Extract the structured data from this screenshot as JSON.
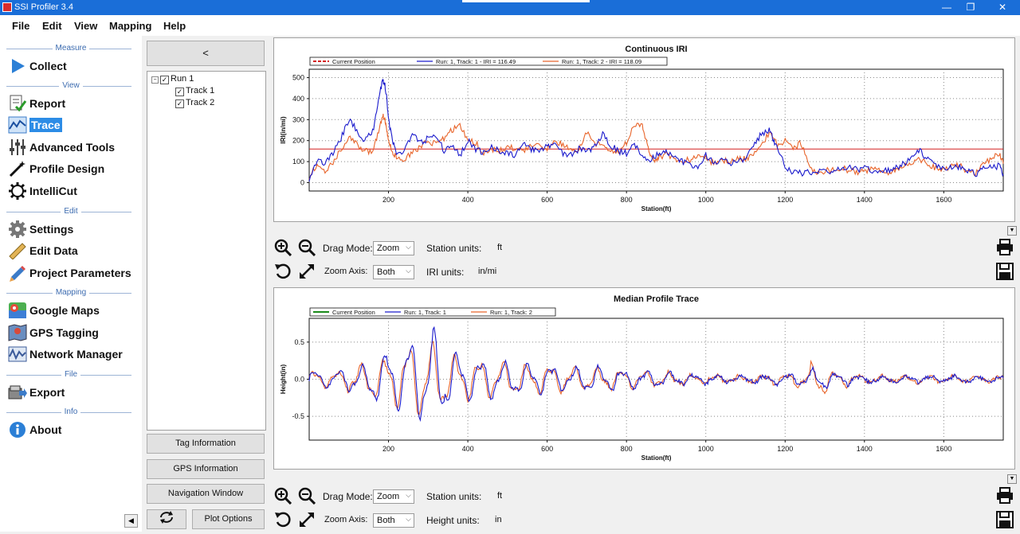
{
  "window": {
    "title": "SSI Profiler 3.4",
    "minimize": "—",
    "maximize": "❐",
    "close": "✕"
  },
  "menu": [
    "File",
    "Edit",
    "View",
    "Mapping",
    "Help"
  ],
  "sidebar": {
    "sections": [
      "Measure",
      "View",
      "Edit",
      "Mapping",
      "File",
      "Info"
    ],
    "items": [
      {
        "label": "Collect",
        "icon": "play-triangle-icon"
      },
      {
        "label": "Report",
        "icon": "report-check-icon"
      },
      {
        "label": "Trace",
        "icon": "trace-graph-icon",
        "selected": true
      },
      {
        "label": "Advanced Tools",
        "icon": "sliders-icon"
      },
      {
        "label": "Profile Design",
        "icon": "magic-wand-icon"
      },
      {
        "label": "IntelliCut",
        "icon": "gear-outline-icon"
      },
      {
        "label": "Settings",
        "icon": "gear-icon"
      },
      {
        "label": "Edit Data",
        "icon": "ruler-icon"
      },
      {
        "label": "Project Parameters",
        "icon": "pencil-icon"
      },
      {
        "label": "Google Maps",
        "icon": "map-pin-icon"
      },
      {
        "label": "GPS Tagging",
        "icon": "map-icon"
      },
      {
        "label": "Network Manager",
        "icon": "network-icon"
      },
      {
        "label": "Export",
        "icon": "export-icon"
      },
      {
        "label": "About",
        "icon": "info-icon"
      }
    ],
    "collapse": "◀"
  },
  "tree": {
    "collapse_button": "<",
    "run": "Run 1",
    "tracks": [
      "Track 1",
      "Track 2"
    ]
  },
  "buttons": {
    "tag_info": "Tag Information",
    "gps_info": "GPS Information",
    "nav_window": "Navigation Window",
    "plot_options": "Plot Options"
  },
  "iri_controls": {
    "drag_mode_label": "Drag Mode:",
    "drag_mode_value": "Zoom",
    "zoom_axis_label": "Zoom Axis:",
    "zoom_axis_value": "Both",
    "station_units_label": "Station units:",
    "station_units_value": "ft",
    "second_units_label": "IRI units:",
    "second_units_value": "in/mi"
  },
  "profile_controls": {
    "drag_mode_label": "Drag Mode:",
    "drag_mode_value": "Zoom",
    "zoom_axis_label": "Zoom Axis:",
    "zoom_axis_value": "Both",
    "station_units_label": "Station units:",
    "station_units_value": "ft",
    "second_units_label": "Height units:",
    "second_units_value": "in"
  },
  "colors": {
    "track1": "#1a1acc",
    "track2": "#e8642a",
    "current": "#d42020",
    "current2": "#1a8a1a"
  },
  "chart_data": [
    {
      "type": "line",
      "title": "Continuous IRI",
      "xlabel": "Station(ft)",
      "ylabel": "IRI(in/mi)",
      "xlim": [
        0,
        1750
      ],
      "ylim": [
        -40,
        540
      ],
      "xticks": [
        200,
        400,
        600,
        800,
        1000,
        1200,
        1400,
        1600
      ],
      "yticks": [
        0,
        100,
        200,
        300,
        400,
        500
      ],
      "grid": true,
      "legend": "top-left",
      "hline": 160,
      "series": [
        {
          "name": "Current Position",
          "role": "legend-only"
        },
        {
          "name": "Run: 1, Track: 1 - IRI = 116.49",
          "x": [
            0,
            20,
            40,
            60,
            80,
            100,
            120,
            140,
            160,
            175,
            185,
            190,
            195,
            200,
            210,
            220,
            240,
            260,
            280,
            300,
            320,
            340,
            360,
            380,
            400,
            420,
            440,
            460,
            480,
            500,
            520,
            540,
            560,
            580,
            600,
            620,
            640,
            660,
            680,
            700,
            720,
            740,
            760,
            780,
            800,
            820,
            840,
            860,
            880,
            900,
            920,
            940,
            960,
            980,
            1000,
            1020,
            1040,
            1060,
            1080,
            1100,
            1120,
            1140,
            1160,
            1170,
            1180,
            1200,
            1220,
            1240,
            1260,
            1280,
            1300,
            1320,
            1340,
            1360,
            1380,
            1400,
            1420,
            1440,
            1460,
            1480,
            1500,
            1520,
            1540,
            1560,
            1580,
            1600,
            1620,
            1640,
            1660,
            1680,
            1700,
            1720,
            1740,
            1750
          ],
          "y": [
            20,
            110,
            90,
            140,
            210,
            300,
            250,
            200,
            240,
            400,
            490,
            470,
            420,
            300,
            200,
            130,
            160,
            230,
            190,
            210,
            230,
            150,
            170,
            130,
            200,
            160,
            140,
            170,
            150,
            140,
            130,
            180,
            160,
            150,
            170,
            190,
            140,
            130,
            160,
            150,
            170,
            230,
            180,
            150,
            140,
            180,
            130,
            110,
            140,
            150,
            120,
            100,
            80,
            70,
            130,
            90,
            110,
            90,
            100,
            110,
            180,
            230,
            250,
            210,
            160,
            80,
            50,
            45,
            50,
            55,
            60,
            50,
            65,
            75,
            60,
            70,
            55,
            45,
            60,
            70,
            90,
            120,
            150,
            110,
            80,
            65,
            70,
            75,
            60,
            40,
            65,
            70,
            80,
            40
          ]
        },
        {
          "name": "Run: 1, Track: 2 - IRI = 118.09",
          "x": [
            0,
            20,
            40,
            60,
            80,
            100,
            120,
            140,
            160,
            175,
            185,
            190,
            195,
            200,
            210,
            220,
            240,
            260,
            280,
            300,
            320,
            340,
            360,
            380,
            400,
            420,
            440,
            460,
            480,
            500,
            520,
            540,
            560,
            580,
            600,
            620,
            640,
            660,
            680,
            700,
            720,
            740,
            760,
            780,
            800,
            820,
            840,
            850,
            860,
            870,
            880,
            900,
            920,
            940,
            960,
            980,
            1000,
            1020,
            1040,
            1060,
            1080,
            1100,
            1120,
            1140,
            1160,
            1180,
            1200,
            1220,
            1240,
            1260,
            1280,
            1300,
            1320,
            1340,
            1360,
            1380,
            1400,
            1420,
            1440,
            1460,
            1480,
            1500,
            1520,
            1540,
            1560,
            1580,
            1600,
            1620,
            1640,
            1660,
            1680,
            1700,
            1720,
            1740,
            1750
          ],
          "y": [
            30,
            80,
            60,
            90,
            160,
            220,
            180,
            150,
            150,
            240,
            320,
            310,
            260,
            200,
            140,
            120,
            110,
            140,
            170,
            200,
            180,
            210,
            250,
            280,
            200,
            190,
            140,
            160,
            150,
            170,
            160,
            150,
            180,
            170,
            160,
            200,
            180,
            150,
            160,
            240,
            190,
            170,
            160,
            140,
            190,
            280,
            270,
            200,
            130,
            110,
            120,
            130,
            110,
            100,
            110,
            130,
            120,
            90,
            110,
            100,
            120,
            110,
            140,
            180,
            240,
            180,
            200,
            160,
            190,
            80,
            40,
            55,
            60,
            70,
            60,
            50,
            55,
            65,
            60,
            50,
            65,
            80,
            100,
            110,
            90,
            70,
            60,
            80,
            85,
            50,
            45,
            90,
            110,
            140,
            90
          ]
        }
      ]
    },
    {
      "type": "line",
      "title": "Median Profile Trace",
      "xlabel": "Station(ft)",
      "ylabel": "Height(in)",
      "xlim": [
        0,
        1750
      ],
      "ylim": [
        -0.82,
        0.82
      ],
      "xticks": [
        200,
        400,
        600,
        800,
        1000,
        1200,
        1400,
        1600
      ],
      "yticks": [
        -0.5,
        0.0,
        0.5
      ],
      "grid": true,
      "legend": "top-left",
      "series": [
        {
          "name": "Current Position",
          "role": "legend-only"
        },
        {
          "name": "Run: 1, Track: 1",
          "amp": [
            0.12,
            0.12,
            0.2,
            0.35,
            0.45,
            0.6,
            0.7,
            0.4,
            0.3,
            0.3,
            0.25,
            0.22,
            0.2,
            0.18,
            0.18,
            0.16,
            0.14,
            0.12,
            0.1,
            0.08,
            0.07,
            0.06,
            0.06,
            0.05,
            0.08,
            0.1,
            0.15,
            0.08,
            0.06,
            0.05,
            0.05,
            0.05,
            0.05,
            0.05,
            0.05,
            0.05
          ]
        },
        {
          "name": "Run: 1, Track: 2",
          "amp": [
            0.12,
            0.12,
            0.2,
            0.3,
            0.4,
            0.55,
            0.5,
            0.35,
            0.3,
            0.28,
            0.24,
            0.22,
            0.2,
            0.18,
            0.17,
            0.16,
            0.14,
            0.12,
            0.1,
            0.08,
            0.07,
            0.06,
            0.06,
            0.05,
            0.08,
            0.12,
            0.25,
            0.1,
            0.06,
            0.05,
            0.05,
            0.05,
            0.05,
            0.05,
            0.05,
            0.05
          ]
        }
      ]
    }
  ]
}
